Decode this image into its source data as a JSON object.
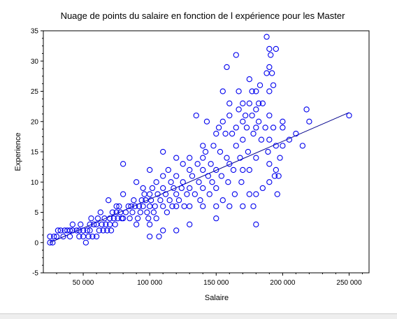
{
  "chart_data": {
    "type": "scatter",
    "title": "Nuage de points du salaire en fonction de l expérience pour les Master",
    "xlabel": "Salaire",
    "ylabel": "Experience",
    "xlim": [
      20000,
      265000
    ],
    "ylim": [
      -5,
      35
    ],
    "x_ticks": [
      50000,
      100000,
      150000,
      200000,
      250000
    ],
    "x_tick_labels": [
      "50 000",
      "100 000",
      "150 000",
      "200 000",
      "250 000"
    ],
    "y_ticks": [
      -5,
      0,
      5,
      10,
      15,
      20,
      25,
      30,
      35
    ],
    "y_tick_labels": [
      "-5",
      "0",
      "5",
      "10",
      "15",
      "20",
      "25",
      "30",
      "35"
    ],
    "marker_color": "#0000ee",
    "line_color": "#00008b",
    "grid": false,
    "series": [
      {
        "marker": "circle",
        "points": [
          [
            25000,
            0
          ],
          [
            27000,
            0
          ],
          [
            25000,
            1
          ],
          [
            28000,
            1
          ],
          [
            30000,
            1
          ],
          [
            31000,
            2
          ],
          [
            33000,
            2
          ],
          [
            35000,
            1
          ],
          [
            36000,
            2
          ],
          [
            38000,
            2
          ],
          [
            40000,
            2
          ],
          [
            40000,
            1
          ],
          [
            42000,
            2
          ],
          [
            42000,
            3
          ],
          [
            45000,
            2
          ],
          [
            47000,
            2
          ],
          [
            47000,
            1
          ],
          [
            48000,
            3
          ],
          [
            50000,
            1
          ],
          [
            50000,
            2
          ],
          [
            52000,
            0
          ],
          [
            53000,
            2
          ],
          [
            54000,
            1
          ],
          [
            55000,
            2
          ],
          [
            55000,
            3
          ],
          [
            56000,
            4
          ],
          [
            57000,
            1
          ],
          [
            58000,
            3
          ],
          [
            60000,
            1
          ],
          [
            60000,
            3
          ],
          [
            61000,
            4
          ],
          [
            62000,
            2
          ],
          [
            63000,
            5
          ],
          [
            64000,
            3
          ],
          [
            65000,
            2
          ],
          [
            66000,
            4
          ],
          [
            67000,
            3
          ],
          [
            68000,
            2
          ],
          [
            69000,
            7
          ],
          [
            70000,
            4
          ],
          [
            70000,
            3
          ],
          [
            71000,
            2
          ],
          [
            72000,
            5
          ],
          [
            73000,
            4
          ],
          [
            74000,
            3
          ],
          [
            75000,
            5
          ],
          [
            75000,
            6
          ],
          [
            76000,
            4
          ],
          [
            77000,
            6
          ],
          [
            78000,
            5
          ],
          [
            79000,
            4
          ],
          [
            80000,
            8
          ],
          [
            80000,
            13
          ],
          [
            80000,
            4
          ],
          [
            82000,
            5
          ],
          [
            84000,
            6
          ],
          [
            85000,
            4
          ],
          [
            86000,
            6
          ],
          [
            87000,
            5
          ],
          [
            88000,
            7
          ],
          [
            89000,
            6
          ],
          [
            90000,
            10
          ],
          [
            90000,
            3
          ],
          [
            91000,
            4
          ],
          [
            92000,
            6
          ],
          [
            93000,
            5
          ],
          [
            94000,
            7
          ],
          [
            95000,
            9
          ],
          [
            95000,
            6
          ],
          [
            96000,
            8
          ],
          [
            97000,
            7
          ],
          [
            98000,
            5
          ],
          [
            99000,
            4
          ],
          [
            100000,
            12
          ],
          [
            100000,
            8
          ],
          [
            100000,
            6
          ],
          [
            100000,
            3
          ],
          [
            100000,
            1
          ],
          [
            101000,
            7
          ],
          [
            102000,
            9
          ],
          [
            103000,
            5
          ],
          [
            104000,
            6
          ],
          [
            105000,
            10
          ],
          [
            105000,
            4
          ],
          [
            106000,
            8
          ],
          [
            107000,
            1
          ],
          [
            108000,
            7
          ],
          [
            110000,
            15
          ],
          [
            110000,
            11
          ],
          [
            110000,
            9
          ],
          [
            110000,
            6
          ],
          [
            110000,
            2
          ],
          [
            112000,
            8
          ],
          [
            113000,
            5
          ],
          [
            114000,
            12
          ],
          [
            115000,
            7
          ],
          [
            116000,
            10
          ],
          [
            117000,
            6
          ],
          [
            118000,
            9
          ],
          [
            120000,
            14
          ],
          [
            120000,
            11
          ],
          [
            120000,
            8
          ],
          [
            120000,
            6
          ],
          [
            120000,
            2
          ],
          [
            122000,
            7
          ],
          [
            124000,
            9
          ],
          [
            125000,
            13
          ],
          [
            125000,
            10
          ],
          [
            126000,
            6
          ],
          [
            128000,
            8
          ],
          [
            130000,
            14
          ],
          [
            130000,
            12
          ],
          [
            130000,
            9
          ],
          [
            130000,
            6
          ],
          [
            130000,
            3
          ],
          [
            132000,
            11
          ],
          [
            134000,
            8
          ],
          [
            135000,
            21
          ],
          [
            136000,
            13
          ],
          [
            137000,
            10
          ],
          [
            138000,
            7
          ],
          [
            140000,
            16
          ],
          [
            140000,
            14
          ],
          [
            140000,
            12
          ],
          [
            140000,
            9
          ],
          [
            140000,
            6
          ],
          [
            142000,
            15
          ],
          [
            143000,
            20
          ],
          [
            144000,
            11
          ],
          [
            145000,
            8
          ],
          [
            146000,
            13
          ],
          [
            147000,
            10
          ],
          [
            148000,
            16
          ],
          [
            150000,
            18
          ],
          [
            150000,
            12
          ],
          [
            150000,
            9
          ],
          [
            150000,
            6
          ],
          [
            150000,
            4
          ],
          [
            152000,
            19
          ],
          [
            153000,
            15
          ],
          [
            154000,
            11
          ],
          [
            155000,
            25
          ],
          [
            155000,
            20
          ],
          [
            155000,
            7
          ],
          [
            157000,
            18
          ],
          [
            158000,
            29
          ],
          [
            158000,
            14
          ],
          [
            159000,
            10
          ],
          [
            160000,
            23
          ],
          [
            160000,
            21
          ],
          [
            160000,
            13
          ],
          [
            160000,
            6
          ],
          [
            162000,
            18
          ],
          [
            163000,
            12
          ],
          [
            164000,
            8
          ],
          [
            165000,
            31
          ],
          [
            165000,
            19
          ],
          [
            165000,
            16
          ],
          [
            167000,
            25
          ],
          [
            167000,
            22
          ],
          [
            168000,
            14
          ],
          [
            169000,
            10
          ],
          [
            170000,
            23
          ],
          [
            170000,
            20
          ],
          [
            170000,
            17
          ],
          [
            170000,
            12
          ],
          [
            170000,
            6
          ],
          [
            172000,
            21
          ],
          [
            173000,
            19
          ],
          [
            174000,
            15
          ],
          [
            175000,
            27
          ],
          [
            175000,
            23
          ],
          [
            175000,
            12
          ],
          [
            175000,
            8
          ],
          [
            177000,
            25
          ],
          [
            177000,
            21
          ],
          [
            178000,
            18
          ],
          [
            178000,
            6
          ],
          [
            180000,
            25
          ],
          [
            180000,
            22
          ],
          [
            180000,
            19
          ],
          [
            180000,
            14
          ],
          [
            180000,
            8
          ],
          [
            180000,
            3
          ],
          [
            182000,
            23
          ],
          [
            182000,
            20
          ],
          [
            183000,
            26
          ],
          [
            184000,
            17
          ],
          [
            185000,
            9
          ],
          [
            185000,
            23
          ],
          [
            187000,
            19
          ],
          [
            188000,
            28
          ],
          [
            188000,
            34
          ],
          [
            189000,
            15
          ],
          [
            190000,
            32
          ],
          [
            190000,
            29
          ],
          [
            190000,
            25
          ],
          [
            190000,
            21
          ],
          [
            190000,
            17
          ],
          [
            190000,
            13
          ],
          [
            190000,
            10
          ],
          [
            191000,
            31
          ],
          [
            192000,
            28
          ],
          [
            193000,
            26
          ],
          [
            193000,
            19
          ],
          [
            194000,
            11
          ],
          [
            195000,
            32
          ],
          [
            195000,
            16
          ],
          [
            195000,
            12
          ],
          [
            196000,
            8
          ],
          [
            197000,
            11
          ],
          [
            198000,
            14
          ],
          [
            200000,
            20
          ],
          [
            200000,
            19
          ],
          [
            200000,
            16
          ],
          [
            205000,
            17
          ],
          [
            210000,
            18
          ],
          [
            215000,
            16
          ],
          [
            218000,
            22
          ],
          [
            220000,
            20
          ],
          [
            250000,
            21
          ]
        ]
      }
    ],
    "trendline": {
      "x": [
        25000,
        250000
      ],
      "y": [
        0,
        21.5
      ]
    }
  }
}
